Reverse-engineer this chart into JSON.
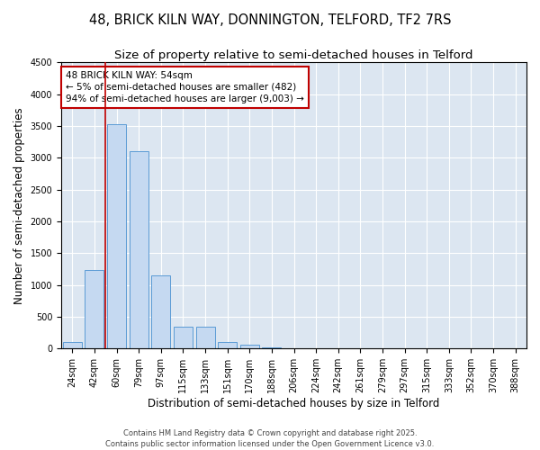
{
  "title_line1": "48, BRICK KILN WAY, DONNINGTON, TELFORD, TF2 7RS",
  "title_line2": "Size of property relative to semi-detached houses in Telford",
  "xlabel": "Distribution of semi-detached houses by size in Telford",
  "ylabel": "Number of semi-detached properties",
  "categories": [
    "24sqm",
    "42sqm",
    "60sqm",
    "79sqm",
    "97sqm",
    "115sqm",
    "133sqm",
    "151sqm",
    "170sqm",
    "188sqm",
    "206sqm",
    "224sqm",
    "242sqm",
    "261sqm",
    "279sqm",
    "297sqm",
    "315sqm",
    "333sqm",
    "352sqm",
    "370sqm",
    "388sqm"
  ],
  "values": [
    100,
    1230,
    3520,
    3100,
    1150,
    340,
    340,
    110,
    55,
    20,
    8,
    3,
    1,
    0,
    0,
    0,
    0,
    0,
    0,
    0,
    0
  ],
  "bar_color": "#c5d9f1",
  "bar_edge_color": "#5b9bd5",
  "vline_x": 1.5,
  "vline_color": "#c00000",
  "annotation_text": "48 BRICK KILN WAY: 54sqm\n← 5% of semi-detached houses are smaller (482)\n94% of semi-detached houses are larger (9,003) →",
  "annotation_box_color": "#ffffff",
  "annotation_box_edge": "#c00000",
  "ylim": [
    0,
    4500
  ],
  "yticks": [
    0,
    500,
    1000,
    1500,
    2000,
    2500,
    3000,
    3500,
    4000,
    4500
  ],
  "footer_text": "Contains HM Land Registry data © Crown copyright and database right 2025.\nContains public sector information licensed under the Open Government Licence v3.0.",
  "bg_color": "#ffffff",
  "plot_bg_color": "#dce6f1",
  "grid_color": "#ffffff",
  "title_fontsize": 10.5,
  "subtitle_fontsize": 9.5,
  "axis_label_fontsize": 8.5,
  "tick_fontsize": 7,
  "annotation_fontsize": 7.5,
  "footer_fontsize": 6
}
